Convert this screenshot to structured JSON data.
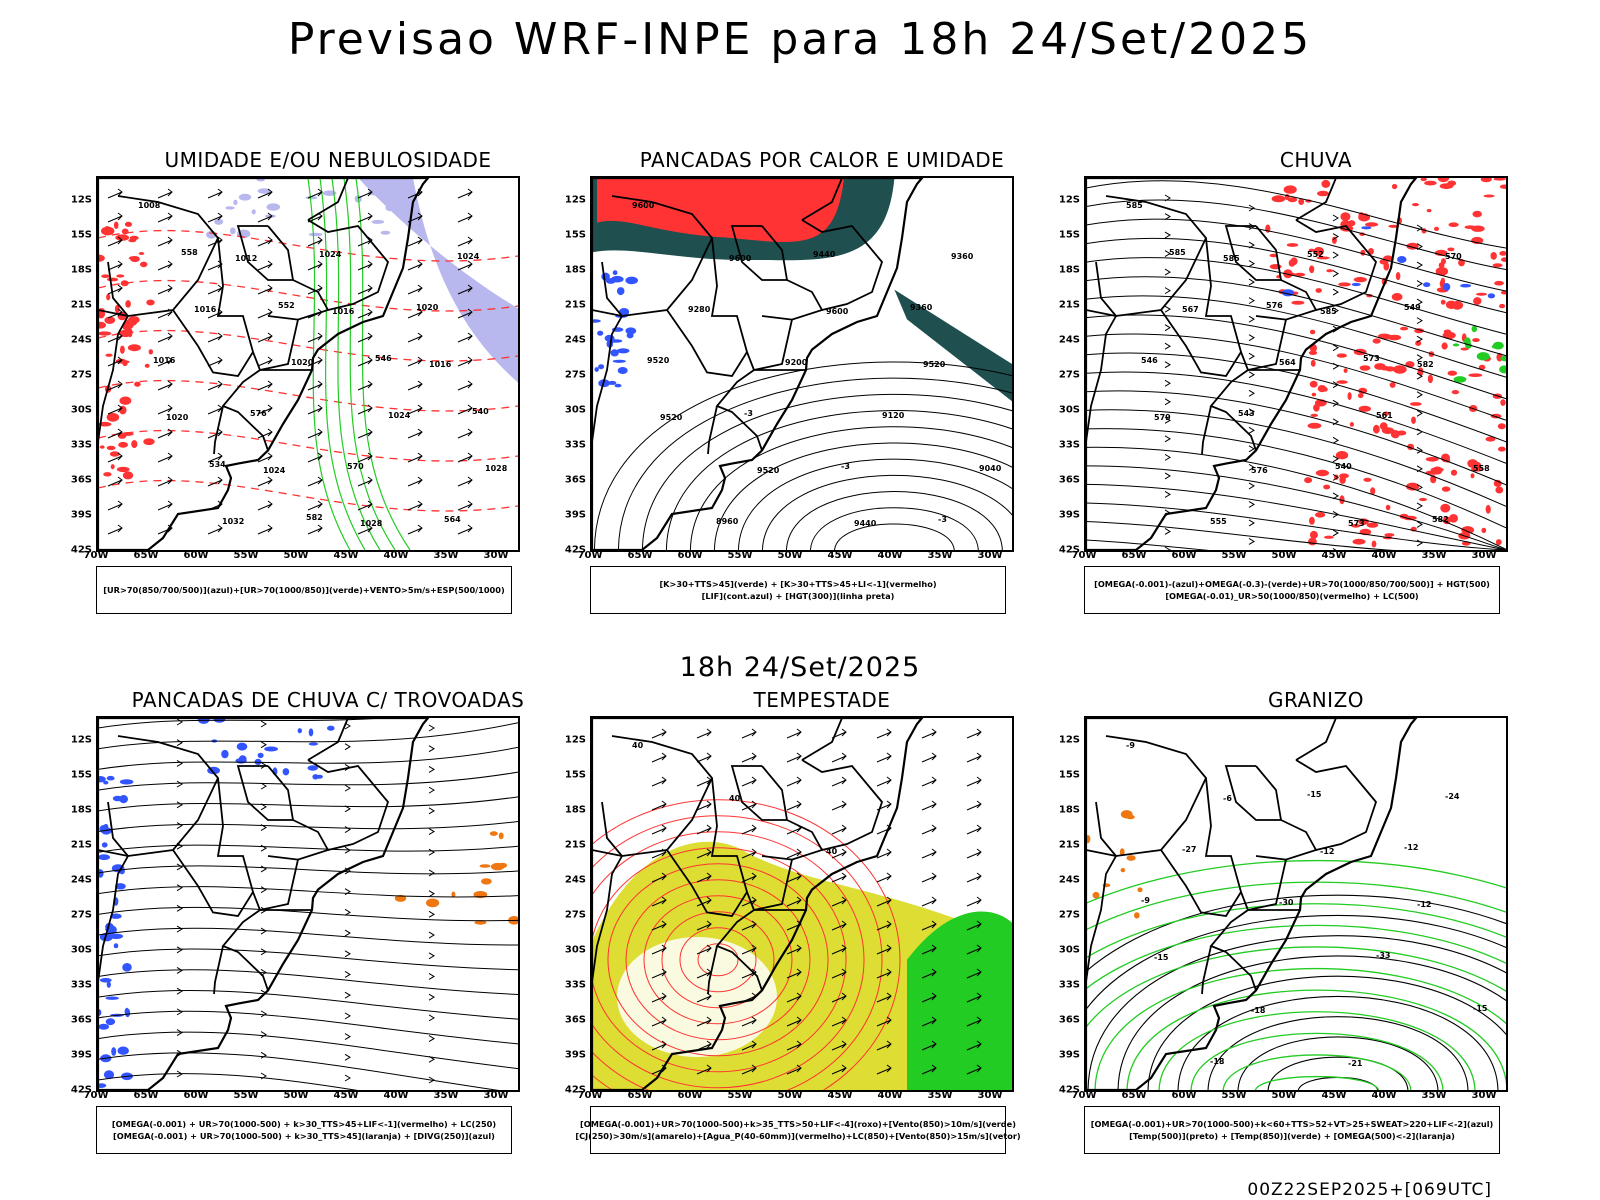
{
  "main_title": "Previsao WRF-INPE  para 18h 24/Set/2025",
  "middle_title": "18h 24/Set/2025",
  "footer": "00Z22SEP2025+[069UTC]",
  "lat_labels": [
    "12S",
    "15S",
    "18S",
    "21S",
    "24S",
    "27S",
    "30S",
    "33S",
    "36S",
    "39S",
    "42S"
  ],
  "lon_labels": [
    "70W",
    "65W",
    "60W",
    "55W",
    "50W",
    "45W",
    "40W",
    "35W",
    "30W"
  ],
  "colors": {
    "blue": "#3355ff",
    "green": "#22cc22",
    "red": "#ff3333",
    "dark_teal": "#1f4f4f",
    "yellow": "#dddd33",
    "orange": "#ee7711",
    "lavender": "#b8b8ee",
    "purple": "#8822cc"
  },
  "panels": [
    {
      "title": "UMIDADE E/OU NEBULOSIDADE",
      "legend": [
        "[UR>70(850/700/500)](azul)+[UR>70(1000/850)](verde)+VENTO>5m/s+ESP(500/1000)"
      ],
      "contour_labels": [
        "1008",
        "1012",
        "1016",
        "1016",
        "1020",
        "1024",
        "1028",
        "1024",
        "1016",
        "1020",
        "1024",
        "1028",
        "1032",
        "1024",
        "1020",
        "1016",
        "576",
        "570",
        "564",
        "558",
        "552",
        "546",
        "540",
        "534",
        "582"
      ]
    },
    {
      "title": "PANCADAS POR CALOR E UMIDADE",
      "legend": [
        "[K>30+TTS>45](verde) + [K>30+TTS>45+LI<-1](vermelho)",
        "[LIF](cont.azul) + [HGT(300)](linha preta)"
      ],
      "contour_labels": [
        "9600",
        "9600",
        "9600",
        "9520",
        "9520",
        "9520",
        "9440",
        "9360",
        "9280",
        "9200",
        "9120",
        "9040",
        "8960",
        "9440",
        "9360",
        "9520",
        "-3",
        "-3",
        "-3"
      ]
    },
    {
      "title": "CHUVA",
      "legend": [
        "[OMEGA(-0.001)-(azul)+OMEGA(-0.3)-(verde)+UR>70(1000/850/700/500)] + HGT(500)",
        "[OMEGA(-0.01)_UR>50(1000/850)(vermelho) + LC(500)"
      ],
      "contour_labels": [
        "585",
        "585",
        "585",
        "582",
        "579",
        "576",
        "573",
        "570",
        "567",
        "564",
        "561",
        "558",
        "555",
        "552",
        "549",
        "546",
        "543",
        "540",
        "582",
        "585",
        "576",
        "573"
      ]
    },
    {
      "title": "PANCADAS DE CHUVA C/ TROVOADAS",
      "legend": [
        "[OMEGA(-0.001) + UR>70(1000-500) + k>30_TTS>45+LIF<-1](vermelho) + LC(250)",
        "[OMEGA(-0.001) + UR>70(1000-500) + k>30_TTS>45](laranja) + [DIVG(250)](azul)"
      ],
      "contour_labels": []
    },
    {
      "title": "TEMPESTADE",
      "legend": [
        "[OMEGA(-0.001)+UR>70(1000-500)+k>35_TTS>50+LIF<-4](roxo)+[Vento(850)>10m/s](verde)",
        "[CJ(250)>30m/s](amarelo)+[Agua_P(40-60mm)](vermelho)+LC(850)+[Vento(850)>15m/s](vetor)"
      ],
      "contour_labels": [
        "40",
        "40",
        "40"
      ]
    },
    {
      "title": "GRANIZO",
      "legend": [
        "[OMEGA(-0.001)+UR>70(1000-500)+k<60+TTS>52+VT>25+SWEAT>220+LIF<-2](azul)",
        "[Temp(500)](preto) + [Temp(850)](verde) + [OMEGA(500)<-2](laranja)"
      ],
      "contour_labels": [
        "-9",
        "-6",
        "-12",
        "-12",
        "-15",
        "-18",
        "-21",
        "-24",
        "-27",
        "-30",
        "-33",
        "-15",
        "-18",
        "-15",
        "-12",
        "-9"
      ]
    }
  ]
}
